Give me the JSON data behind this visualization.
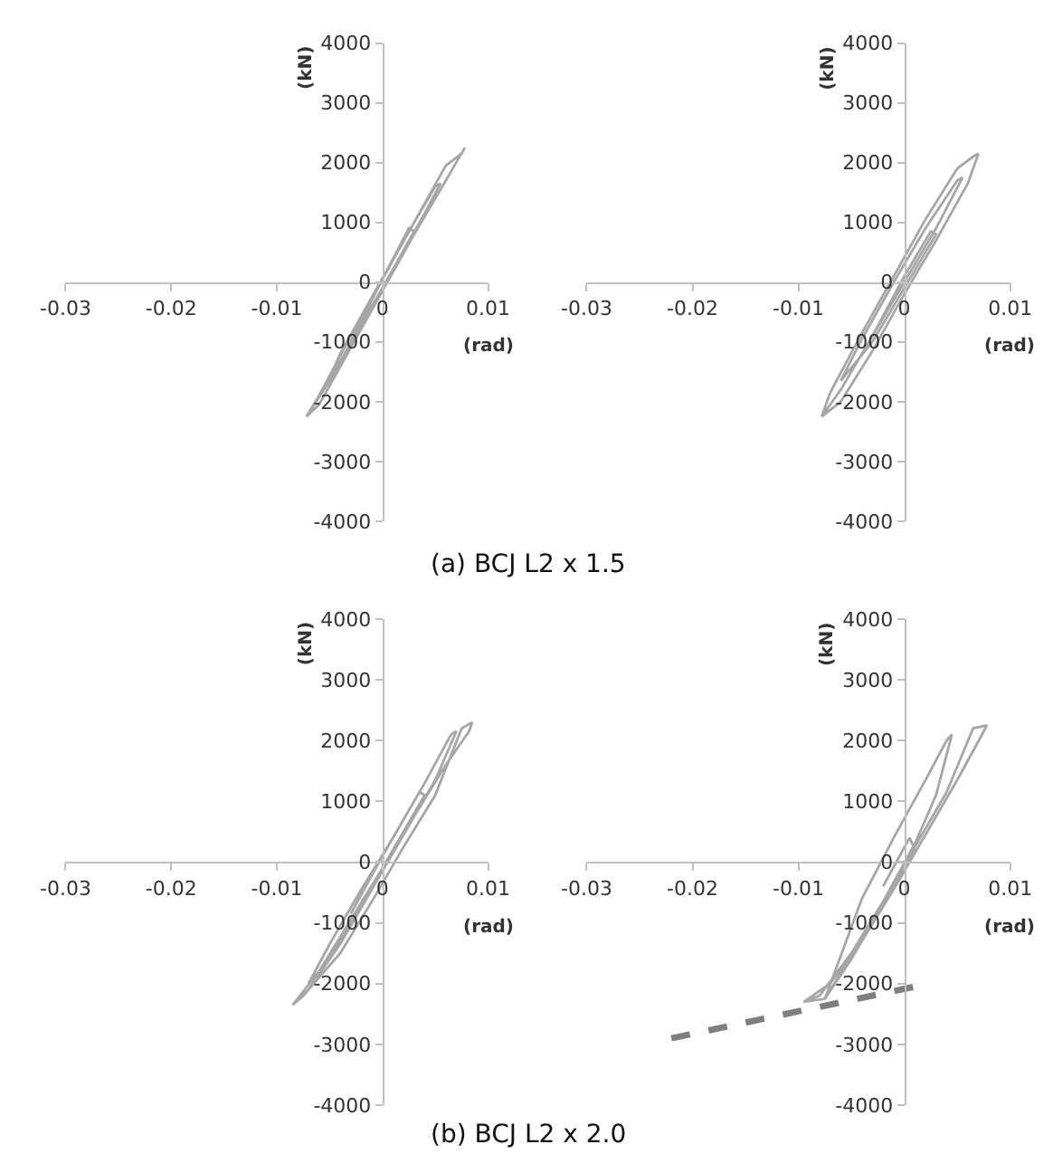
{
  "chart_data": [
    {
      "type": "line",
      "xlabel": "(rad)",
      "ylabel": "(kN)",
      "xlim": [
        -0.03,
        0.01
      ],
      "ylim": [
        -4000,
        4000
      ],
      "xticks": [
        -0.03,
        -0.02,
        -0.01,
        0,
        0.01
      ],
      "yticks": [
        -4000,
        -3000,
        -2000,
        -1000,
        0,
        1000,
        2000,
        3000,
        4000
      ],
      "annotations": [
        "(a) BCJ L2 x 1.5"
      ],
      "series": [
        {
          "color": "#a6a6a6",
          "x": [
            -0.0072,
            -0.006,
            -0.003,
            0,
            0.003,
            0.006,
            0.0078,
            0.0075,
            0.006,
            0.003,
            0,
            -0.003,
            -0.006,
            -0.0072,
            -0.005,
            -0.002,
            0.001,
            0.004,
            0.0055,
            0.005,
            0.002,
            -0.001,
            -0.004,
            -0.005,
            -0.003,
            0,
            0.003,
            0.0025,
            0,
            -0.003
          ],
          "values": [
            -2250,
            -2050,
            -1100,
            -150,
            800,
            1700,
            2250,
            2150,
            1950,
            1000,
            50,
            -900,
            -1900,
            -2250,
            -1650,
            -700,
            200,
            1150,
            1650,
            1600,
            700,
            -250,
            -1200,
            -1600,
            -1050,
            -100,
            850,
            900,
            50,
            -1000
          ]
        }
      ]
    },
    {
      "type": "line",
      "xlabel": "(rad)",
      "ylabel": "(kN)",
      "xlim": [
        -0.03,
        0.01
      ],
      "ylim": [
        -4000,
        4000
      ],
      "xticks": [
        -0.03,
        -0.02,
        -0.01,
        0,
        0.01
      ],
      "yticks": [
        -4000,
        -3000,
        -2000,
        -1000,
        0,
        1000,
        2000,
        3000,
        4000
      ],
      "series": [
        {
          "color": "#a6a6a6",
          "x": [
            -0.0078,
            -0.006,
            -0.003,
            0,
            0.003,
            0.006,
            0.007,
            0.0065,
            0.005,
            0.002,
            -0.001,
            -0.004,
            -0.007,
            -0.0078,
            -0.006,
            -0.003,
            0,
            0.003,
            0.0055,
            0.005,
            0.002,
            -0.001,
            -0.004,
            -0.006,
            -0.003,
            0,
            0.003,
            0.0025,
            0,
            -0.003
          ],
          "values": [
            -2250,
            -2000,
            -1150,
            -200,
            700,
            1650,
            2150,
            2100,
            1900,
            1050,
            100,
            -850,
            -1850,
            -2250,
            -1800,
            -900,
            0,
            900,
            1750,
            1700,
            900,
            0,
            -950,
            -1650,
            -1000,
            -100,
            800,
            850,
            100,
            -900
          ]
        }
      ]
    },
    {
      "type": "line",
      "xlabel": "(rad)",
      "ylabel": "(kN)",
      "xlim": [
        -0.03,
        0.01
      ],
      "ylim": [
        -4000,
        4000
      ],
      "xticks": [
        -0.03,
        -0.02,
        -0.01,
        0,
        0.01
      ],
      "yticks": [
        -4000,
        -3000,
        -2000,
        -1000,
        0,
        1000,
        2000,
        3000,
        4000
      ],
      "annotations": [
        "(b) BCJ L2 x 2.0"
      ],
      "series": [
        {
          "color": "#a6a6a6",
          "x": [
            -0.0085,
            -0.0075,
            -0.004,
            -0.001,
            0.002,
            0.005,
            0.0075,
            0.0085,
            0.0082,
            0.006,
            0.003,
            0,
            -0.003,
            -0.006,
            -0.0085,
            -0.007,
            -0.004,
            -0.001,
            0.002,
            0.005,
            0.007,
            0.0065,
            0.004,
            0.001,
            -0.002,
            -0.005,
            -0.007,
            -0.005,
            -0.002,
            0.001,
            0.004,
            0.0035,
            0,
            -0.003
          ],
          "values": [
            -2350,
            -2200,
            -1500,
            -650,
            250,
            1100,
            2200,
            2300,
            2150,
            1600,
            750,
            -100,
            -950,
            -1800,
            -2350,
            -2100,
            -1350,
            -450,
            450,
            1350,
            2150,
            2100,
            1300,
            400,
            -450,
            -1350,
            -2000,
            -1600,
            -700,
            200,
            1100,
            1150,
            100,
            -850
          ]
        }
      ]
    },
    {
      "type": "line",
      "xlabel": "(rad)",
      "ylabel": "(kN)",
      "xlim": [
        -0.03,
        0.01
      ],
      "ylim": [
        -4000,
        4000
      ],
      "xticks": [
        -0.03,
        -0.02,
        -0.01,
        0,
        0.01
      ],
      "yticks": [
        -4000,
        -3000,
        -2000,
        -1000,
        0,
        1000,
        2000,
        3000,
        4000
      ],
      "series": [
        {
          "color": "#a6a6a6",
          "x": [
            -0.0095,
            -0.008,
            -0.005,
            -0.002,
            0.001,
            0.004,
            0.0065,
            0.0078,
            0.0072,
            0.005,
            0.002,
            -0.001,
            -0.004,
            -0.007,
            -0.0095,
            -0.0075,
            -0.005,
            -0.002,
            0.001,
            0.003,
            0.0045,
            0.004,
            0.002,
            -0.001,
            -0.004,
            -0.0075,
            -0.005,
            -0.002,
            0.001,
            0.0005,
            -0.002
          ],
          "values": [
            -2300,
            -2200,
            -1500,
            -650,
            250,
            1150,
            2200,
            2250,
            2050,
            1350,
            450,
            -450,
            -1300,
            -2000,
            -2300,
            -2250,
            -1550,
            -650,
            300,
            1100,
            2100,
            2000,
            1350,
            400,
            -600,
            -2250,
            -1600,
            -700,
            200,
            400,
            -400
          ]
        },
        {
          "color": "#7f7f7f",
          "line_style": "dashed",
          "x": [
            -0.022,
            0.001
          ],
          "values": [
            -2900,
            -2050
          ]
        }
      ]
    }
  ]
}
